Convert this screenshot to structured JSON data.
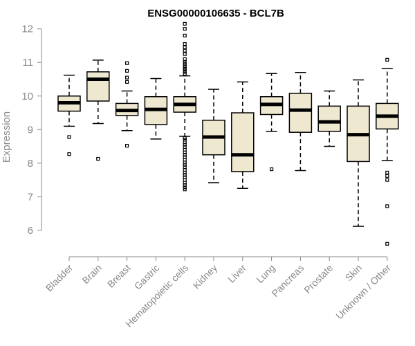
{
  "chart_data": {
    "type": "boxplot",
    "title": "ENSG00000106635 - BCL7B",
    "xlabel": "",
    "ylabel": "Expression",
    "ylim": [
      5.4,
      12.2
    ],
    "yticks": [
      6,
      7,
      8,
      9,
      10,
      11,
      12
    ],
    "colors": {
      "box_fill": "#efe8d1",
      "stroke": "#000000",
      "axis": "#888888"
    },
    "categories": [
      "Bladder",
      "Brain",
      "Breast",
      "Gastric",
      "Hematopoietic cells",
      "Kidney",
      "Liver",
      "Lung",
      "Pancreas",
      "Prostate",
      "Skin",
      "Unknown / Other"
    ],
    "boxes": [
      {
        "name": "Bladder",
        "whisker_low": 9.1,
        "q1": 9.55,
        "median": 9.8,
        "q3": 10.0,
        "whisker_high": 10.62,
        "outliers": [
          8.78,
          8.27
        ]
      },
      {
        "name": "Brain",
        "whisker_low": 9.18,
        "q1": 9.85,
        "median": 10.5,
        "q3": 10.72,
        "whisker_high": 11.07,
        "outliers": [
          8.13
        ]
      },
      {
        "name": "Breast",
        "whisker_low": 8.97,
        "q1": 9.42,
        "median": 9.57,
        "q3": 9.78,
        "whisker_high": 10.15,
        "outliers": [
          10.42,
          10.55,
          10.75,
          10.98,
          8.52
        ]
      },
      {
        "name": "Gastric",
        "whisker_low": 8.72,
        "q1": 9.15,
        "median": 9.6,
        "q3": 9.98,
        "whisker_high": 10.52,
        "outliers": []
      },
      {
        "name": "Hematopoietic cells",
        "whisker_low": 8.8,
        "q1": 9.52,
        "median": 9.75,
        "q3": 9.98,
        "whisker_high": 10.6,
        "outliers": [
          12.15,
          12.0,
          11.8,
          11.55,
          11.45,
          11.35,
          11.25,
          11.1,
          11.0,
          10.95,
          10.88,
          10.82,
          10.78,
          10.72,
          10.66,
          8.75,
          8.7,
          8.62,
          8.55,
          8.48,
          8.4,
          8.32,
          8.25,
          8.18,
          8.1,
          8.02,
          7.95,
          7.88,
          7.8,
          7.72,
          7.65,
          7.58,
          7.5,
          7.42,
          7.35,
          7.28,
          7.22
        ]
      },
      {
        "name": "Kidney",
        "whisker_low": 7.42,
        "q1": 8.25,
        "median": 8.78,
        "q3": 9.28,
        "whisker_high": 10.2,
        "outliers": []
      },
      {
        "name": "Liver",
        "whisker_low": 7.25,
        "q1": 7.75,
        "median": 8.25,
        "q3": 9.5,
        "whisker_high": 10.42,
        "outliers": []
      },
      {
        "name": "Lung",
        "whisker_low": 8.95,
        "q1": 9.45,
        "median": 9.75,
        "q3": 9.98,
        "whisker_high": 10.67,
        "outliers": [
          7.82
        ]
      },
      {
        "name": "Pancreas",
        "whisker_low": 7.78,
        "q1": 8.92,
        "median": 9.58,
        "q3": 10.08,
        "whisker_high": 10.7,
        "outliers": []
      },
      {
        "name": "Prostate",
        "whisker_low": 8.5,
        "q1": 8.95,
        "median": 9.23,
        "q3": 9.7,
        "whisker_high": 10.15,
        "outliers": []
      },
      {
        "name": "Skin",
        "whisker_low": 6.12,
        "q1": 8.05,
        "median": 8.85,
        "q3": 9.7,
        "whisker_high": 10.48,
        "outliers": []
      },
      {
        "name": "Unknown / Other",
        "whisker_low": 8.08,
        "q1": 9.02,
        "median": 9.4,
        "q3": 9.78,
        "whisker_high": 10.82,
        "outliers": [
          11.08,
          7.72,
          7.62,
          7.5,
          6.72,
          5.6
        ]
      }
    ]
  }
}
